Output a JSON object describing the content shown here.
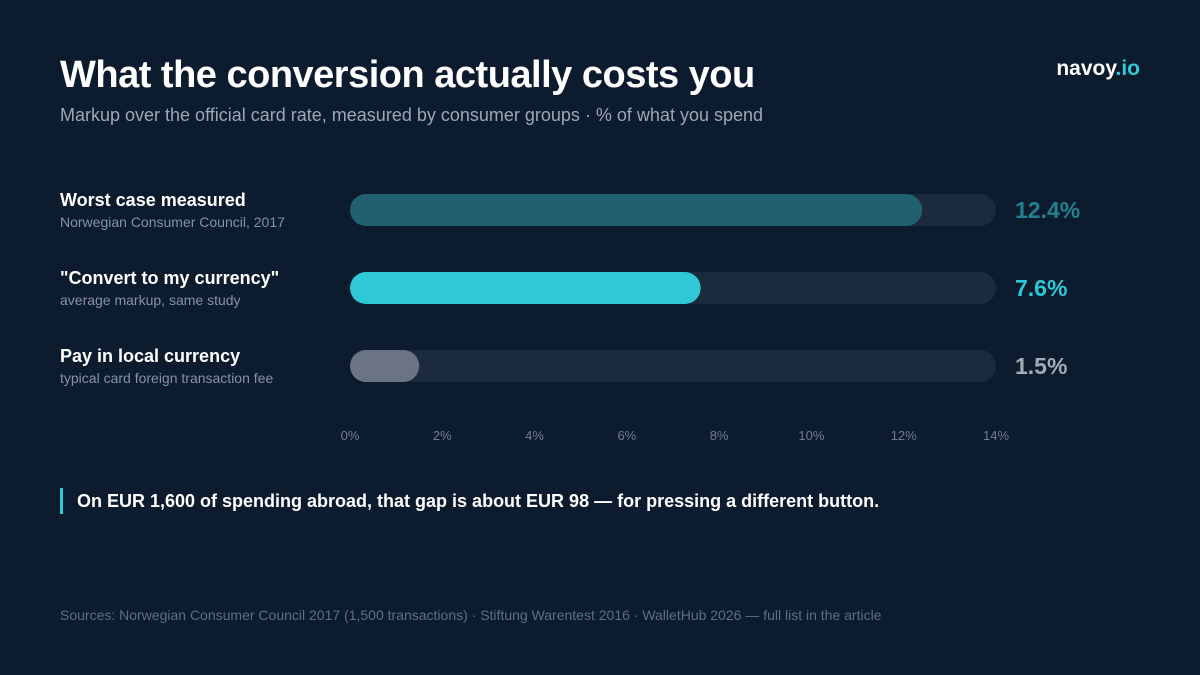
{
  "header": {
    "title": "What the conversion actually costs you",
    "subtitle": "Markup over the official card rate, measured by consumer groups · % of what you spend"
  },
  "brand": {
    "name": "navoy",
    "tld": ".io"
  },
  "rows": [
    {
      "label": "Worst case measured",
      "sublabel": "Norwegian Consumer Council, 2017",
      "value_label": "12.4%"
    },
    {
      "label": "\"Convert to my currency\"",
      "sublabel": "average markup, same study",
      "value_label": "7.6%"
    },
    {
      "label": "Pay in local currency",
      "sublabel": "typical card foreign transaction fee",
      "value_label": "1.5%"
    }
  ],
  "chart_data": {
    "type": "bar",
    "orientation": "horizontal",
    "categories": [
      "Worst case measured",
      "\"Convert to my currency\"",
      "Pay in local currency"
    ],
    "values": [
      12.4,
      7.6,
      1.5
    ],
    "xlim": [
      0,
      14
    ],
    "xticks": [
      0,
      2,
      4,
      6,
      8,
      10,
      12,
      14
    ],
    "xtick_labels": [
      "0%",
      "2%",
      "4%",
      "6%",
      "8%",
      "10%",
      "12%",
      "14%"
    ],
    "grid": false,
    "colors": [
      "#21606f",
      "#2ec8d6",
      "#6b7482"
    ],
    "value_label_colors": [
      "#21828f",
      "#2ec8d6",
      "#a3abb6"
    ],
    "track_color": "#1b2a3d"
  },
  "callout": "On EUR 1,600 of spending abroad, that gap is about EUR 98 — for pressing a different button.",
  "sources": "Sources: Norwegian Consumer Council 2017 (1,500 transactions) · Stiftung Warentest 2016 · WalletHub 2026 — full list in the article"
}
